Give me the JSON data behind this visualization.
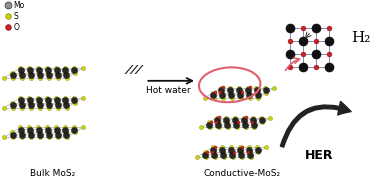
{
  "legend": {
    "Mo": {
      "color": "#909090",
      "edge": "#333333"
    },
    "S": {
      "color": "#c8d400",
      "edge": "#888800"
    },
    "O": {
      "color": "#cc2222",
      "edge": "#880000"
    }
  },
  "bulk_label": "Bulk MoS₂",
  "conductive_label": "Conductive-MoS₂",
  "arrow_label": "Hot water",
  "her_label": "HER",
  "h2_label": "H₂",
  "bg_color": "#ffffff",
  "pink_color": "#e06070",
  "text_color": "#000000",
  "grid_color": "#aaaaaa",
  "bond_color": "#aaaacc"
}
